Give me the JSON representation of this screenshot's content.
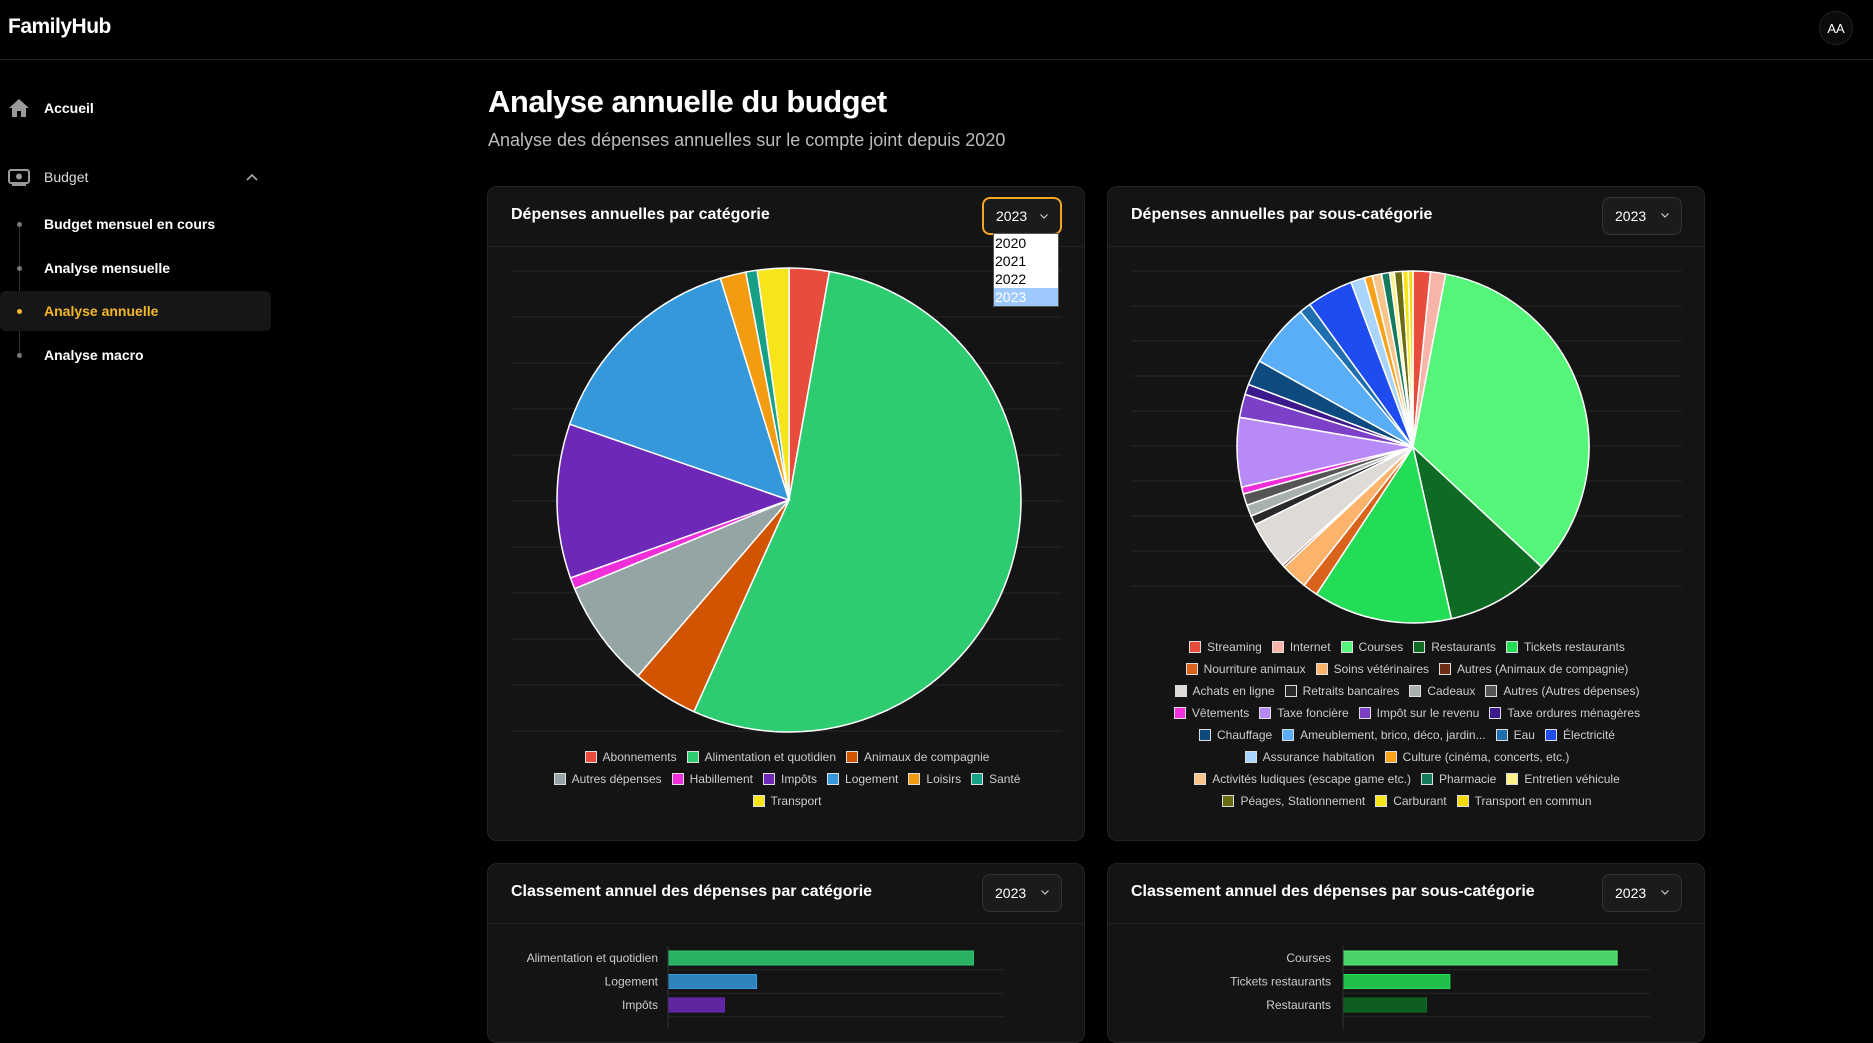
{
  "app": {
    "name": "FamilyHub",
    "avatar_initials": "AA"
  },
  "sidebar": {
    "home_label": "Accueil",
    "budget_label": "Budget",
    "sub_items": [
      {
        "label": "Budget mensuel en cours",
        "active": false
      },
      {
        "label": "Analyse mensuelle",
        "active": false
      },
      {
        "label": "Analyse annuelle",
        "active": true
      },
      {
        "label": "Analyse macro",
        "active": false
      }
    ]
  },
  "page": {
    "title": "Analyse annuelle du budget",
    "subtitle": "Analyse des dépenses annuelles sur le compte joint depuis 2020"
  },
  "cards": {
    "pie_category": {
      "title": "Dépenses annuelles par catégorie",
      "year": "2023"
    },
    "pie_subcategory": {
      "title": "Dépenses annuelles par sous-catégorie",
      "year": "2023"
    },
    "rank_category": {
      "title": "Classement annuel des dépenses par catégorie",
      "year": "2023"
    },
    "rank_subcategory": {
      "title": "Classement annuel des dépenses par sous-catégorie",
      "year": "2023"
    }
  },
  "year_dropdown": {
    "options": [
      "2020",
      "2021",
      "2022",
      "2023"
    ],
    "selected": "2023"
  },
  "chart_data": [
    {
      "type": "pie",
      "id": "pie_category",
      "slices": [
        {
          "label": "Abonnements",
          "value": 2.8,
          "color": "#e74c3c"
        },
        {
          "label": "Alimentation et quotidien",
          "value": 54.2,
          "color": "#2ecc71"
        },
        {
          "label": "Animaux de compagnie",
          "value": 4.6,
          "color": "#d35400"
        },
        {
          "label": "Autres dépenses",
          "value": 7.5,
          "color": "#95a5a6"
        },
        {
          "label": "Habillement",
          "value": 0.8,
          "color": "#f02fdb"
        },
        {
          "label": "Impôts",
          "value": 10.8,
          "color": "#6d28b8"
        },
        {
          "label": "Logement",
          "value": 15.0,
          "color": "#3498db"
        },
        {
          "label": "Loisirs",
          "value": 1.8,
          "color": "#f39c12"
        },
        {
          "label": "Santé",
          "value": 0.8,
          "color": "#16a085"
        },
        {
          "label": "Transport",
          "value": 2.2,
          "color": "#f7e51b"
        }
      ],
      "legend_rows": [
        [
          "Abonnements",
          "Alimentation et quotidien",
          "Animaux de compagnie"
        ],
        [
          "Autres dépenses",
          "Habillement",
          "Impôts",
          "Logement",
          "Loisirs",
          "Santé"
        ],
        [
          "Transport"
        ]
      ]
    },
    {
      "type": "pie",
      "id": "pie_subcategory",
      "slices": [
        {
          "label": "Streaming",
          "value": 1.5,
          "color": "#e74c3c"
        },
        {
          "label": "Internet",
          "value": 1.3,
          "color": "#f8b4a8"
        },
        {
          "label": "Courses",
          "value": 32.0,
          "color": "#55f57a"
        },
        {
          "label": "Restaurants",
          "value": 9.0,
          "color": "#0e6b23"
        },
        {
          "label": "Tickets restaurants",
          "value": 12.0,
          "color": "#22dd55"
        },
        {
          "label": "Nourriture animaux",
          "value": 1.3,
          "color": "#d9631a"
        },
        {
          "label": "Soins vétérinaires",
          "value": 2.3,
          "color": "#fcb46d"
        },
        {
          "label": "Autres (Animaux de compagnie)",
          "value": 0.2,
          "color": "#6e2c13"
        },
        {
          "label": "Achats en ligne",
          "value": 4.2,
          "color": "#dedad6"
        },
        {
          "label": "Retraits bancaires",
          "value": 0.8,
          "color": "#2a2a2a"
        },
        {
          "label": "Cadeaux",
          "value": 1.0,
          "color": "#a9b0b0"
        },
        {
          "label": "Autres (Autres dépenses)",
          "value": 1.0,
          "color": "#555555"
        },
        {
          "label": "Vêtements",
          "value": 0.6,
          "color": "#f02fdb"
        },
        {
          "label": "Taxe foncière",
          "value": 6.0,
          "color": "#b78af8"
        },
        {
          "label": "Impôt sur le revenu",
          "value": 2.0,
          "color": "#7c3fc8"
        },
        {
          "label": "Taxe ordures ménagères",
          "value": 0.9,
          "color": "#3c1a8c"
        },
        {
          "label": "Chauffage",
          "value": 2.2,
          "color": "#0d4a80"
        },
        {
          "label": "Ameublement, brico, déco, jardin...",
          "value": 5.5,
          "color": "#5aaef8"
        },
        {
          "label": "Eau",
          "value": 1.0,
          "color": "#1f6fb0"
        },
        {
          "label": "Électricité",
          "value": 4.0,
          "color": "#1f4cf0"
        },
        {
          "label": "Assurance habitation",
          "value": 1.2,
          "color": "#a9d4fb"
        },
        {
          "label": "Culture (cinéma, concerts, etc.)",
          "value": 0.7,
          "color": "#f7a21a"
        },
        {
          "label": "Activités ludiques (escape game etc.)",
          "value": 0.8,
          "color": "#f7c48a"
        },
        {
          "label": "Pharmacie",
          "value": 0.7,
          "color": "#157a5e"
        },
        {
          "label": "Entretien véhicule",
          "value": 0.4,
          "color": "#fcf08a"
        },
        {
          "label": "Péages, Stationnement",
          "value": 0.7,
          "color": "#6b6b12"
        },
        {
          "label": "Carburant",
          "value": 0.5,
          "color": "#f7e51b"
        },
        {
          "label": "Transport en commun",
          "value": 0.4,
          "color": "#f5d90a"
        }
      ],
      "legend_rows": [
        [
          "Streaming",
          "Internet",
          "Courses",
          "Restaurants",
          "Tickets restaurants"
        ],
        [
          "Nourriture animaux",
          "Soins vétérinaires",
          "Autres (Animaux de compagnie)"
        ],
        [
          "Achats en ligne",
          "Retraits bancaires",
          "Cadeaux",
          "Autres (Autres dépenses)"
        ],
        [
          "Vêtements",
          "Taxe foncière",
          "Impôt sur le revenu",
          "Taxe ordures ménagères"
        ],
        [
          "Chauffage",
          "Ameublement, brico, déco, jardin...",
          "Eau",
          "Électricité"
        ],
        [
          "Assurance habitation",
          "Culture (cinéma, concerts, etc.)"
        ],
        [
          "Activités ludiques (escape game etc.)",
          "Pharmacie",
          "Entretien véhicule"
        ],
        [
          "Péages, Stationnement",
          "Carburant",
          "Transport en commun"
        ]
      ]
    },
    {
      "type": "bar",
      "id": "rank_category",
      "orientation": "horizontal",
      "categories": [
        "Alimentation et quotidien",
        "Logement",
        "Impôts"
      ],
      "values": [
        100,
        29,
        18.5
      ],
      "colors": [
        "#2ecc71",
        "#3498db",
        "#6d28b8"
      ],
      "xlim": [
        0,
        110
      ]
    },
    {
      "type": "bar",
      "id": "rank_subcategory",
      "orientation": "horizontal",
      "categories": [
        "Courses",
        "Tickets restaurants",
        "Restaurants"
      ],
      "values": [
        100,
        39,
        30.5
      ],
      "colors": [
        "#55f57a",
        "#22dd55",
        "#0e6b23"
      ],
      "xlim": [
        0,
        112
      ]
    }
  ]
}
